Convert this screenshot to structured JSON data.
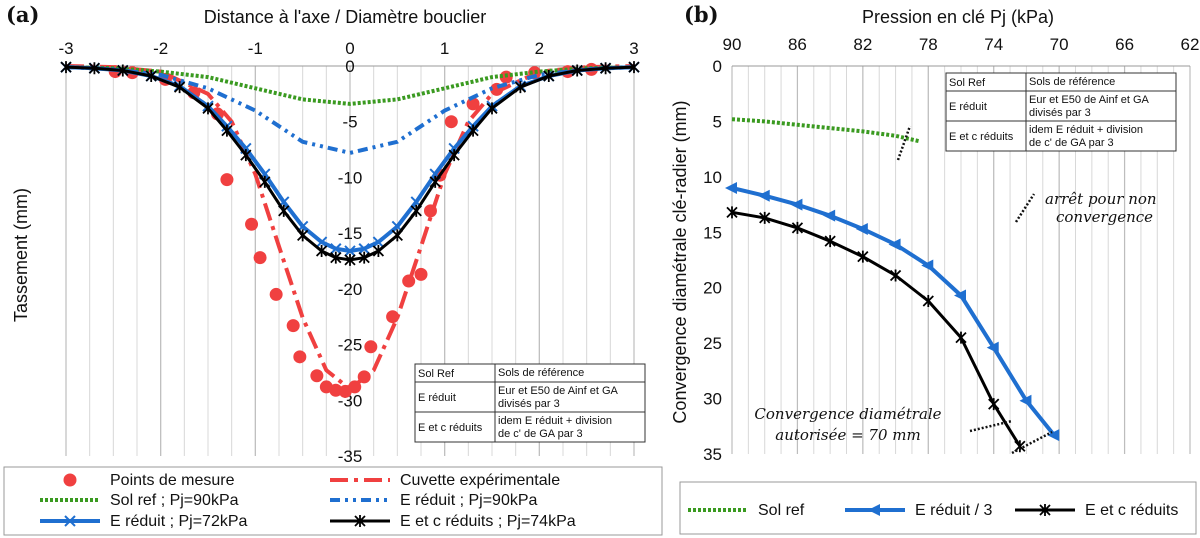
{
  "chart_data": [
    {
      "type": "line",
      "panel_label": "(a)",
      "xlabel": "Distance à l'axe / Diamètre bouclier",
      "ylabel": "Tassement (mm)",
      "xlim": [
        -3,
        3
      ],
      "ylim": [
        -35,
        0
      ],
      "xticks": [
        -3,
        -2,
        -1,
        0,
        1,
        2,
        3
      ],
      "yticks": [
        0,
        -5,
        -10,
        -15,
        -20,
        -25,
        -30,
        -35
      ],
      "grid": "vertical",
      "table": {
        "header": [
          "Sol Ref",
          "Sols de référence"
        ],
        "rows": [
          [
            "E réduit",
            "Eur et E50 de Ainf et GA divisés par 3"
          ],
          [
            "E et c réduits",
            "idem E réduit + division de c' de GA par 3"
          ]
        ]
      },
      "series": [
        {
          "name": "Points de mesure",
          "style": "points",
          "color": "#f04040",
          "x": [
            -2.48,
            -2.3,
            -1.95,
            -1.65,
            -1.4,
            -1.3,
            -1.04,
            -0.95,
            -0.78,
            -0.6,
            -0.53,
            -0.35,
            -0.25,
            -0.15,
            -0.05,
            0.05,
            0.15,
            0.22,
            0.45,
            0.62,
            0.75,
            0.85,
            0.95,
            1.07,
            1.3,
            1.55,
            1.65,
            1.95,
            2.3,
            2.55
          ],
          "y": [
            -0.5,
            -0.6,
            -1.2,
            -2.4,
            -4.3,
            -10.2,
            -14.2,
            -17.2,
            -20.5,
            -23.3,
            -26.1,
            -27.8,
            -28.8,
            -29.1,
            -29.2,
            -28.8,
            -27.9,
            -25.2,
            -22.5,
            -19.3,
            -18.7,
            -13.0,
            -9.8,
            -5.0,
            -3.4,
            -2.1,
            -1.0,
            -0.6,
            -0.5,
            -0.3
          ]
        },
        {
          "name": "Cuvette expérimentale",
          "style": "dashdot",
          "color": "#f04040",
          "x": [
            -3,
            -2.5,
            -2,
            -1.5,
            -1.25,
            -1,
            -0.75,
            -0.5,
            -0.25,
            0,
            0.25,
            0.5,
            0.75,
            1,
            1.25,
            1.5,
            2,
            2.5,
            3
          ],
          "y": [
            0,
            -0.1,
            -0.5,
            -2.5,
            -5.0,
            -9.7,
            -16.2,
            -22.6,
            -27.3,
            -29.0,
            -27.3,
            -22.6,
            -16.2,
            -9.7,
            -5.0,
            -2.5,
            -0.5,
            -0.1,
            0
          ]
        },
        {
          "name": "Sol ref ; Pj=90kPa",
          "style": "dotted",
          "color": "#3a9a20",
          "x": [
            -3,
            -2.5,
            -2,
            -1.5,
            -1,
            -0.5,
            0,
            0.5,
            1,
            1.5,
            2,
            2.5,
            3
          ],
          "y": [
            -0.1,
            -0.2,
            -0.5,
            -1.0,
            -2.0,
            -3.0,
            -3.4,
            -3.0,
            -2.0,
            -1.0,
            -0.5,
            -0.2,
            -0.1
          ]
        },
        {
          "name": "E réduit ; Pj=90kPa",
          "style": "dashdotdot",
          "color": "#1f6fd0",
          "x": [
            -3,
            -2.5,
            -2,
            -1.5,
            -1,
            -0.5,
            0,
            0.5,
            1,
            1.5,
            2,
            2.5,
            3
          ],
          "y": [
            -0.1,
            -0.3,
            -0.8,
            -2.0,
            -4.0,
            -6.8,
            -7.8,
            -6.8,
            -4.0,
            -2.0,
            -0.8,
            -0.3,
            -0.1
          ]
        },
        {
          "name": "E réduit ; Pj=72kPa",
          "style": "line-x",
          "color": "#1f6fd0",
          "x": [
            -3,
            -2.7,
            -2.4,
            -2.1,
            -1.8,
            -1.5,
            -1.3,
            -1.1,
            -0.9,
            -0.7,
            -0.5,
            -0.3,
            -0.15,
            0,
            0.15,
            0.3,
            0.5,
            0.7,
            0.9,
            1.1,
            1.3,
            1.5,
            1.8,
            2.1,
            2.4,
            2.7,
            3
          ],
          "y": [
            -0.1,
            -0.2,
            -0.4,
            -0.9,
            -1.8,
            -3.6,
            -5.4,
            -7.4,
            -9.7,
            -12.2,
            -14.4,
            -15.8,
            -16.4,
            -16.6,
            -16.4,
            -15.8,
            -14.4,
            -12.2,
            -9.7,
            -7.4,
            -5.4,
            -3.6,
            -1.8,
            -0.9,
            -0.4,
            -0.2,
            -0.1
          ]
        },
        {
          "name": "E et c réduits ; Pj=74kPa",
          "style": "line-star",
          "color": "#000000",
          "x": [
            -3,
            -2.7,
            -2.4,
            -2.1,
            -1.8,
            -1.5,
            -1.3,
            -1.1,
            -0.9,
            -0.7,
            -0.5,
            -0.3,
            -0.15,
            0,
            0.15,
            0.3,
            0.5,
            0.7,
            0.9,
            1.1,
            1.3,
            1.5,
            1.8,
            2.1,
            2.4,
            2.7,
            3
          ],
          "y": [
            -0.1,
            -0.2,
            -0.4,
            -0.9,
            -1.9,
            -3.8,
            -5.8,
            -8.0,
            -10.4,
            -13.0,
            -15.2,
            -16.6,
            -17.2,
            -17.4,
            -17.2,
            -16.6,
            -15.2,
            -13.0,
            -10.4,
            -8.0,
            -5.8,
            -3.8,
            -1.9,
            -0.9,
            -0.4,
            -0.2,
            -0.1
          ]
        }
      ]
    },
    {
      "type": "line",
      "panel_label": "(b)",
      "xlabel": "Pression en clé Pj (kPa)",
      "ylabel": "Convergence diamétrale clé-radier (mm)",
      "xlim": [
        90,
        62
      ],
      "ylim": [
        0,
        35
      ],
      "xticks": [
        90,
        86,
        82,
        78,
        74,
        70,
        66,
        62
      ],
      "yticks": [
        0,
        5,
        10,
        15,
        20,
        25,
        30,
        35
      ],
      "grid": "vertical",
      "table": {
        "header": [
          "Sol Ref",
          "Sols de référence"
        ],
        "rows": [
          [
            "E réduit",
            "Eur et E50 de Ainf et GA divisés par 3"
          ],
          [
            "E et c réduits",
            "idem E réduit + division de c' de GA par 3"
          ]
        ]
      },
      "annotations": {
        "stop": "arrêt pour non convergence",
        "limit_line1": "Convergence diamétrale",
        "limit_line2": "autorisée = 70 mm"
      },
      "series": [
        {
          "name": "Sol ref",
          "style": "dotted",
          "color": "#3a9a20",
          "x": [
            90,
            88,
            86,
            84,
            82,
            80,
            78.5
          ],
          "y": [
            4.8,
            5.0,
            5.3,
            5.6,
            5.9,
            6.3,
            6.8
          ]
        },
        {
          "name": "E réduit / 3",
          "style": "line-triangle",
          "color": "#1f6fd0",
          "x": [
            90,
            88,
            86,
            84,
            82,
            80,
            78,
            76,
            74,
            72,
            70.3
          ],
          "y": [
            11.0,
            11.7,
            12.5,
            13.5,
            14.7,
            16.1,
            18.0,
            20.7,
            25.4,
            30.2,
            33.3
          ]
        },
        {
          "name": "E et c réduits",
          "style": "line-star",
          "color": "#000000",
          "x": [
            90,
            88,
            86,
            84,
            82,
            80,
            78,
            76,
            74,
            72.4
          ],
          "y": [
            13.2,
            13.7,
            14.6,
            15.8,
            17.2,
            18.9,
            21.2,
            24.5,
            30.5,
            34.3
          ]
        }
      ]
    }
  ]
}
